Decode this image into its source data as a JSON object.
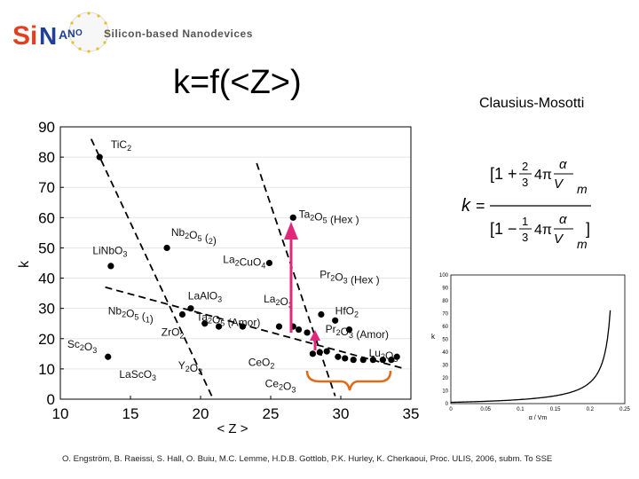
{
  "header": {
    "logo_text": "SiNANO",
    "logo_tagline": "Silicon-based Nanodevices",
    "title": "k=f(<Z>)",
    "side_title": "Clausius-Mosotti"
  },
  "colors": {
    "logo_red": "#e04020",
    "logo_blue": "#1f3f99",
    "arrow_pink": "#e0287a",
    "brace_orange": "#e06a1a"
  },
  "citation": "O. Engström, B. Raeissi, S. Hall, O. Buiu, M.C. Lemme, H.D.B. Gottlob, P.K. Hurley, K. Cherkaoui, Proc. ULIS, 2006, subm. To SSE",
  "chart_data": [
    {
      "type": "scatter",
      "xlabel": "< Z >",
      "ylabel": "k",
      "xlim": [
        10,
        35
      ],
      "ylim": [
        0,
        90
      ],
      "xticks": [
        10,
        15,
        20,
        25,
        30,
        35
      ],
      "yticks": [
        0,
        10,
        20,
        30,
        40,
        50,
        60,
        70,
        80,
        90
      ],
      "points": [
        {
          "x": 12.8,
          "y": 80,
          "label": "TiC2"
        },
        {
          "x": 26.6,
          "y": 60,
          "label": "Ta2O5 (Hex )"
        },
        {
          "x": 17.6,
          "y": 50,
          "label": "Nb2O5 (2)"
        },
        {
          "x": 13.6,
          "y": 44,
          "label": "LiNbO3"
        },
        {
          "x": 24.9,
          "y": 45,
          "label": "La2CuO4"
        },
        {
          "x": 19.3,
          "y": 30,
          "label": "LaAlO3"
        },
        {
          "x": 18.7,
          "y": 28,
          "label": "Nb2O5 (1)"
        },
        {
          "x": 20.3,
          "y": 25,
          "label": ""
        },
        {
          "x": 21.3,
          "y": 24,
          "label": ""
        },
        {
          "x": 23.0,
          "y": 24,
          "label": ""
        },
        {
          "x": 25.6,
          "y": 24,
          "label": ""
        },
        {
          "x": 26.6,
          "y": 24,
          "label": ""
        },
        {
          "x": 27.0,
          "y": 23,
          "label": ""
        },
        {
          "x": 27.6,
          "y": 22,
          "label": ""
        },
        {
          "x": 28.6,
          "y": 28,
          "label": ""
        },
        {
          "x": 29.6,
          "y": 26,
          "label": ""
        },
        {
          "x": 30.6,
          "y": 23,
          "label": ""
        },
        {
          "x": 28.2,
          "y": 20,
          "label": ""
        },
        {
          "x": 28.0,
          "y": 15,
          "label": ""
        },
        {
          "x": 28.5,
          "y": 15.5,
          "label": ""
        },
        {
          "x": 29.0,
          "y": 15.8,
          "label": ""
        },
        {
          "x": 29.8,
          "y": 14,
          "label": ""
        },
        {
          "x": 30.3,
          "y": 13.5,
          "label": ""
        },
        {
          "x": 30.9,
          "y": 13,
          "label": ""
        },
        {
          "x": 31.6,
          "y": 13,
          "label": ""
        },
        {
          "x": 32.3,
          "y": 13,
          "label": ""
        },
        {
          "x": 33.0,
          "y": 13,
          "label": ""
        },
        {
          "x": 33.6,
          "y": 13,
          "label": ""
        },
        {
          "x": 34.0,
          "y": 14,
          "label": ""
        },
        {
          "x": 13.4,
          "y": 14,
          "label": "Sc2O3"
        }
      ],
      "text_labels": [
        {
          "x": 13.6,
          "y": 83,
          "label": "TiC2"
        },
        {
          "x": 27.0,
          "y": 60,
          "label": "Ta2O5 (Hex )"
        },
        {
          "x": 17.9,
          "y": 54,
          "label": "Nb2O5 (2)"
        },
        {
          "x": 12.3,
          "y": 48,
          "label": "LiNbO3"
        },
        {
          "x": 21.6,
          "y": 45,
          "label": "La2CuO4"
        },
        {
          "x": 24.5,
          "y": 32,
          "label": "La2O3"
        },
        {
          "x": 28.5,
          "y": 40,
          "label": "Pr2O3 (Hex )"
        },
        {
          "x": 19.1,
          "y": 33,
          "label": "LaAlO3"
        },
        {
          "x": 13.4,
          "y": 28,
          "label": "Nb2O5 (1)"
        },
        {
          "x": 29.6,
          "y": 28,
          "label": "HfO2"
        },
        {
          "x": 19.7,
          "y": 26,
          "label": "Ta2O5 (Amor)"
        },
        {
          "x": 17.2,
          "y": 21,
          "label": "ZrO2"
        },
        {
          "x": 28.9,
          "y": 22,
          "label": "Pr2O3 (Amor)"
        },
        {
          "x": 10.5,
          "y": 17,
          "label": "Sc2O3"
        },
        {
          "x": 32.0,
          "y": 14,
          "label": "Lu2O3"
        },
        {
          "x": 18.4,
          "y": 10,
          "label": "Y2O3"
        },
        {
          "x": 23.4,
          "y": 11,
          "label": "CeO2"
        },
        {
          "x": 14.2,
          "y": 7,
          "label": "LaScO3"
        },
        {
          "x": 24.6,
          "y": 4,
          "label": "Ce2O3"
        }
      ]
    },
    {
      "type": "line",
      "xlabel": "α / Vm",
      "ylabel": "k",
      "xlim": [
        0,
        0.25
      ],
      "ylim": [
        0,
        100
      ],
      "xticks": [
        "0",
        "0.05",
        "0.1",
        "0.15",
        "0.2",
        "0.25"
      ],
      "yticks": [
        "0",
        "10",
        "20",
        "30",
        "40",
        "50",
        "60",
        "70",
        "80",
        "90",
        "100"
      ]
    }
  ]
}
